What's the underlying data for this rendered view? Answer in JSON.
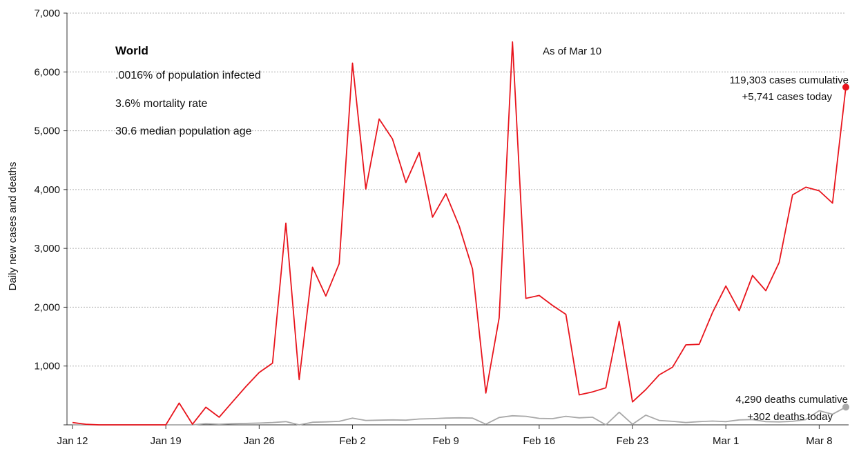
{
  "chart_data": {
    "type": "line",
    "xlabel": "",
    "ylabel": "Daily new cases and deaths",
    "ylim": [
      0,
      7000
    ],
    "y_ticks": [
      0,
      1000,
      2000,
      3000,
      4000,
      5000,
      6000,
      7000
    ],
    "y_tick_labels": [
      "",
      "1,000",
      "2,000",
      "3,000",
      "4,000",
      "5,000",
      "6,000",
      "7,000"
    ],
    "x_start_date": "Jan 12",
    "x_ticks": [
      {
        "day": 0,
        "label": "Jan 12"
      },
      {
        "day": 7,
        "label": "Jan 19"
      },
      {
        "day": 14,
        "label": "Jan 26"
      },
      {
        "day": 21,
        "label": "Feb 2"
      },
      {
        "day": 28,
        "label": "Feb 9"
      },
      {
        "day": 35,
        "label": "Feb 16"
      },
      {
        "day": 42,
        "label": "Feb 23"
      },
      {
        "day": 49,
        "label": "Mar 1"
      },
      {
        "day": 56,
        "label": "Mar 8"
      }
    ],
    "grid": "horizontal dotted",
    "series": [
      {
        "name": "cases",
        "color": "#e8141c",
        "values": [
          40,
          10,
          0,
          0,
          0,
          0,
          0,
          0,
          370,
          10,
          300,
          130,
          390,
          650,
          890,
          1050,
          3430,
          770,
          2680,
          2190,
          2740,
          6150,
          4010,
          5200,
          4860,
          4120,
          4630,
          3530,
          3930,
          3380,
          2650,
          540,
          1820,
          6510,
          2150,
          2200,
          2030,
          1880,
          510,
          560,
          630,
          1760,
          390,
          600,
          850,
          980,
          1360,
          1370,
          1910,
          2360,
          1940,
          2540,
          2280,
          2760,
          3910,
          4040,
          3980,
          3770,
          5741
        ]
      },
      {
        "name": "deaths",
        "color": "#a8a8a8",
        "values": [
          0,
          0,
          0,
          0,
          0,
          0,
          0,
          0,
          0,
          0,
          20,
          10,
          20,
          25,
          30,
          40,
          55,
          0,
          45,
          50,
          60,
          115,
          75,
          80,
          85,
          80,
          100,
          105,
          115,
          120,
          115,
          10,
          125,
          155,
          145,
          110,
          105,
          145,
          120,
          130,
          0,
          215,
          10,
          165,
          75,
          60,
          40,
          55,
          65,
          55,
          85,
          90,
          55,
          50,
          60,
          90,
          240,
          180,
          302
        ]
      }
    ]
  },
  "info_box": {
    "title": "World",
    "lines": [
      ".0016% of population infected",
      "3.6% mortality rate",
      "30.6 median population age"
    ]
  },
  "as_of": "As of Mar 10",
  "cases_annotation": {
    "line1": "119,303 cases cumulative",
    "line2": "+5,741 cases today",
    "color": "#e8141c"
  },
  "deaths_annotation": {
    "line1": "4,290 deaths cumulative",
    "line2": "+302 deaths today",
    "color": "#a8a8a8"
  }
}
